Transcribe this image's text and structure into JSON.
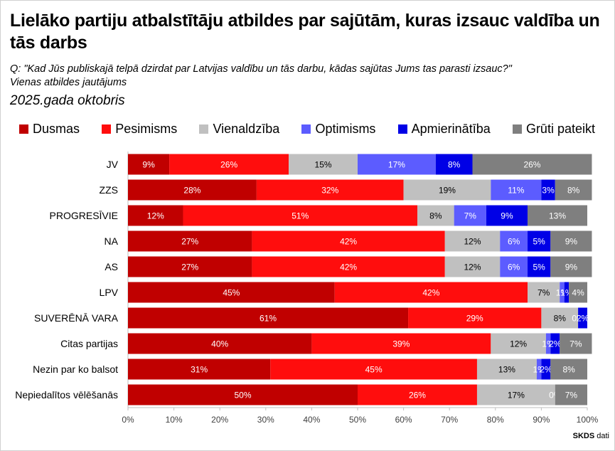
{
  "title": "Lielāko partiju atbalstītāju atbildes par sajūtām, kuras izsauc valdība un tās darbs",
  "question": "Q: \"Kad Jūs publiskajā telpā dzirdat par Latvijas valdību un tās darbu, kādas sajūtas Jums tas parasti izsauc?\"",
  "subtitle": "Vienas atbildes jautājums",
  "date": "2025.gada oktobris",
  "source": {
    "brand": "SKDS",
    "suffix": " dati"
  },
  "colors": {
    "Dusmas": "#c00000",
    "Pesimisms": "#ff0d0d",
    "Vienaldzība": "#c0c0c0",
    "Optimisms": "#5c5cff",
    "Apmierinātība": "#0000e6",
    "Grūti pateikt": "#7f7f7f"
  },
  "chart_data": {
    "type": "bar",
    "orientation": "horizontal",
    "stacked": true,
    "categories": [
      "JV",
      "ZZS",
      "PROGRESĪVIE",
      "NA",
      "AS",
      "LPV",
      "SUVERĒNĀ VARA",
      "Citas partijas",
      "Nezin par ko balsot",
      "Nepiedalītos vēlēšanās"
    ],
    "series": [
      {
        "name": "Dusmas",
        "values": [
          9,
          28,
          12,
          27,
          27,
          45,
          61,
          40,
          31,
          50
        ],
        "labels": [
          "9%",
          "28%",
          "12%",
          "27%",
          "27%",
          "45%",
          "61%",
          "40%",
          "31%",
          "50%"
        ]
      },
      {
        "name": "Pesimisms",
        "values": [
          26,
          32,
          51,
          42,
          42,
          42,
          29,
          39,
          45,
          26
        ],
        "labels": [
          "26%",
          "32%",
          "51%",
          "42%",
          "42%",
          "42%",
          "29%",
          "39%",
          "45%",
          "26%"
        ]
      },
      {
        "name": "Vienaldzība",
        "values": [
          15,
          19,
          8,
          12,
          12,
          7,
          8,
          12,
          13,
          17
        ],
        "labels": [
          "15%",
          "19%",
          "8%",
          "12%",
          "12%",
          "7%",
          "8%",
          "12%",
          "13%",
          "17%"
        ]
      },
      {
        "name": "Optimisms",
        "values": [
          17,
          11,
          7,
          6,
          6,
          1,
          0,
          1,
          1,
          0
        ],
        "labels": [
          "17%",
          "11%",
          "7%",
          "6%",
          "6%",
          "1%",
          "0%",
          "1%",
          "1%",
          "0%"
        ]
      },
      {
        "name": "Apmierinātība",
        "values": [
          8,
          3,
          9,
          5,
          5,
          1,
          2,
          2,
          2,
          0
        ],
        "labels": [
          "8%",
          "3%",
          "9%",
          "5%",
          "5%",
          "1%",
          "2%",
          "2%",
          "2%",
          ""
        ]
      },
      {
        "name": "Grūti pateikt",
        "values": [
          26,
          8,
          13,
          9,
          9,
          4,
          0,
          7,
          8,
          7
        ],
        "labels": [
          "26%",
          "8%",
          "13%",
          "9%",
          "9%",
          "4%",
          "",
          "7%",
          "8%",
          "7%"
        ]
      }
    ],
    "xlim": [
      0,
      100
    ],
    "xticks": [
      "0%",
      "10%",
      "20%",
      "30%",
      "40%",
      "50%",
      "60%",
      "70%",
      "80%",
      "90%",
      "100%"
    ],
    "legend_position": "top",
    "grid": false
  }
}
